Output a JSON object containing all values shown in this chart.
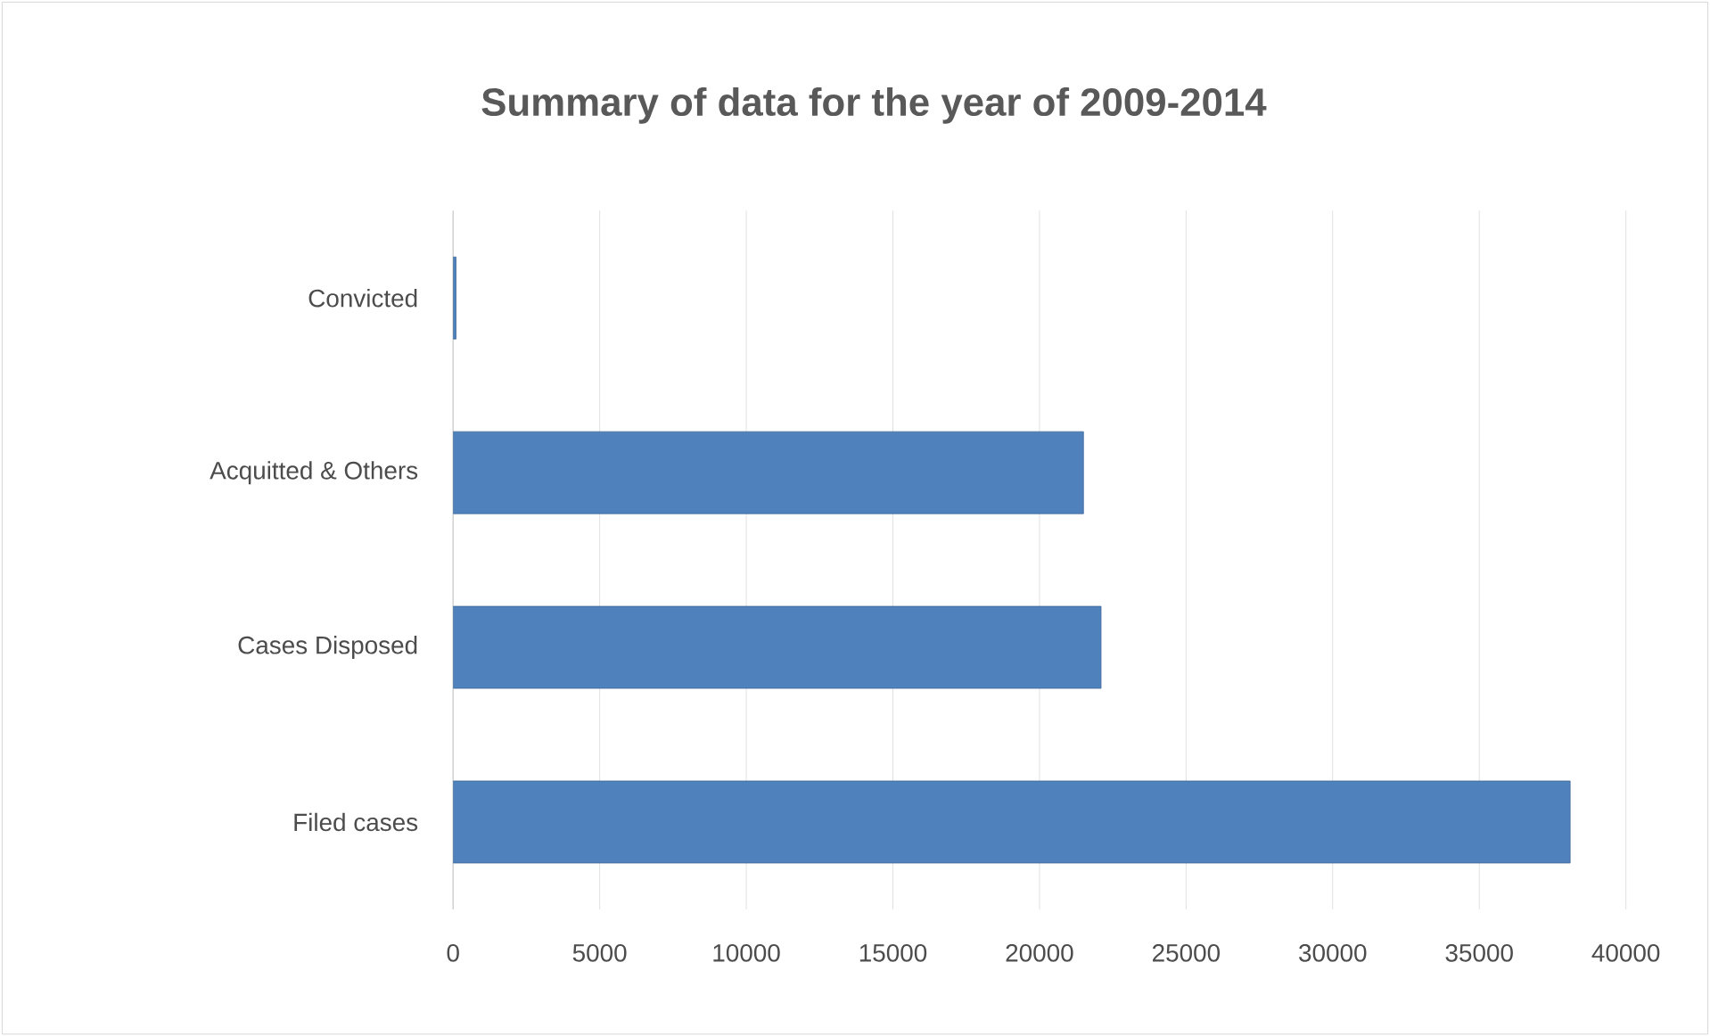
{
  "chart_data": {
    "type": "bar",
    "orientation": "horizontal",
    "title": "Summary of data for the year of 2009-2014",
    "categories": [
      "Convicted",
      "Acquitted & Others",
      "Cases Disposed",
      "Filed cases"
    ],
    "values": [
      100,
      21500,
      22100,
      38100
    ],
    "color": "#4f81bd",
    "xlim": [
      0,
      40000
    ],
    "xticks": [
      0,
      5000,
      10000,
      15000,
      20000,
      25000,
      30000,
      35000,
      40000
    ],
    "grid": "x"
  }
}
